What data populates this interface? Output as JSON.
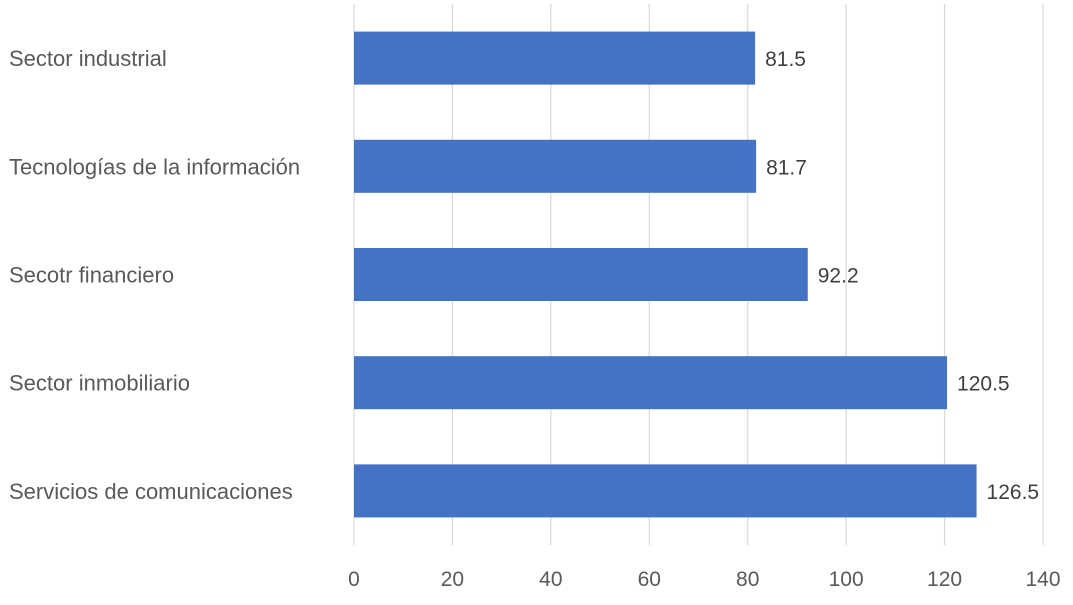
{
  "chart_data": {
    "type": "bar",
    "orientation": "horizontal",
    "categories": [
      "Sector industrial",
      "Tecnologías de la información",
      "Secotr financiero",
      "Sector inmobiliario",
      "Servicios de comunicaciones"
    ],
    "values": [
      81.5,
      81.7,
      92.2,
      120.5,
      126.5
    ],
    "data_labels": [
      "81.5",
      "81.7",
      "92.2",
      "120.5",
      "126.5"
    ],
    "title": "",
    "xlabel": "",
    "ylabel": "",
    "xlim": [
      0,
      140
    ],
    "x_ticks": [
      "0",
      "20",
      "40",
      "60",
      "80",
      "100",
      "120",
      "140"
    ],
    "grid": "vertical",
    "legend": "none",
    "bar_color": "#4472c4"
  }
}
